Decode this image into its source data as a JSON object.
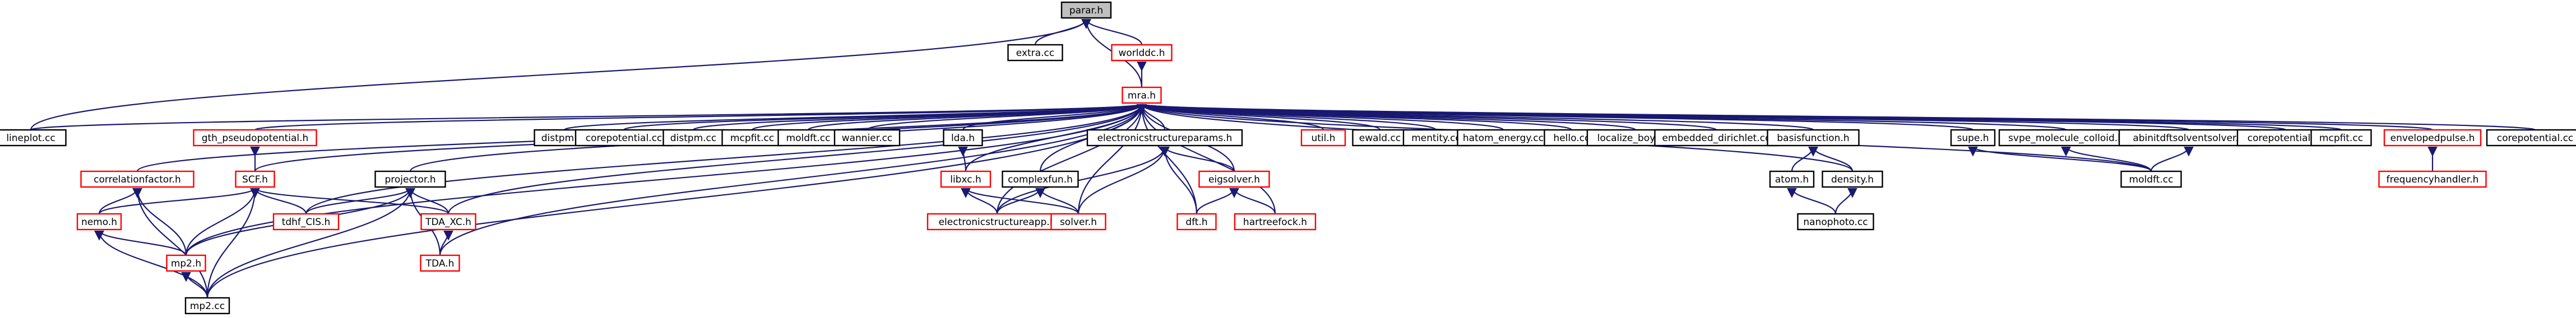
{
  "colors": {
    "edge": "#191970",
    "node_border": "#000000",
    "node_border_incomplete": "#ff0000",
    "focus_fill": "#bfbfbf",
    "node_fill": "#ffffff"
  },
  "nodes": [
    {
      "id": "parar_h",
      "label": "parar.h",
      "kind": "focus"
    },
    {
      "id": "extra_cc",
      "label": "extra.cc",
      "kind": "plain"
    },
    {
      "id": "worlddc_h",
      "label": "worlddc.h",
      "kind": "incomplete"
    },
    {
      "id": "mra_h",
      "label": "mra.h",
      "kind": "incomplete"
    },
    {
      "id": "lineplot_cc",
      "label": "lineplot.cc",
      "kind": "plain"
    },
    {
      "id": "gth_pseudopotential_h",
      "label": "gth_pseudopotential.h",
      "kind": "incomplete"
    },
    {
      "id": "correlationfactor_h",
      "label": "correlationfactor.h",
      "kind": "incomplete"
    },
    {
      "id": "scf_h",
      "label": "SCF.h",
      "kind": "incomplete"
    },
    {
      "id": "projector_h",
      "label": "projector.h",
      "kind": "plain"
    },
    {
      "id": "nemo_h",
      "label": "nemo.h",
      "kind": "incomplete"
    },
    {
      "id": "tdhf_cis_h",
      "label": "tdhf_CIS.h",
      "kind": "incomplete"
    },
    {
      "id": "tda_xc_h",
      "label": "TDA_XC.h",
      "kind": "incomplete"
    },
    {
      "id": "mp2_h",
      "label": "mp2.h",
      "kind": "incomplete"
    },
    {
      "id": "tda_h",
      "label": "TDA.h",
      "kind": "incomplete"
    },
    {
      "id": "mp2_cc",
      "label": "mp2.cc",
      "kind": "plain"
    },
    {
      "id": "distpm_cc_1",
      "label": "distpm.cc",
      "kind": "plain"
    },
    {
      "id": "corepotential_cc_1",
      "label": "corepotential.cc",
      "kind": "plain"
    },
    {
      "id": "distpm_cc_2",
      "label": "distpm.cc",
      "kind": "plain"
    },
    {
      "id": "mcpfit_cc_1",
      "label": "mcpfit.cc",
      "kind": "plain"
    },
    {
      "id": "moldft_cc_1",
      "label": "moldft.cc",
      "kind": "plain"
    },
    {
      "id": "wannier_cc",
      "label": "wannier.cc",
      "kind": "plain"
    },
    {
      "id": "lda_h",
      "label": "lda.h",
      "kind": "plain"
    },
    {
      "id": "libxc_h",
      "label": "libxc.h",
      "kind": "incomplete"
    },
    {
      "id": "complexfun_h",
      "label": "complexfun.h",
      "kind": "plain"
    },
    {
      "id": "ecp_h",
      "label": "electronicstructureparams.h",
      "kind": "plain"
    },
    {
      "id": "eigsolver_h",
      "label": "eigsolver.h",
      "kind": "incomplete"
    },
    {
      "id": "esapp_h",
      "label": "electronicstructureapp.h",
      "kind": "incomplete"
    },
    {
      "id": "solver_h",
      "label": "solver.h",
      "kind": "incomplete"
    },
    {
      "id": "dft_h",
      "label": "dft.h",
      "kind": "incomplete"
    },
    {
      "id": "hartreefock_h",
      "label": "hartreefock.h",
      "kind": "incomplete"
    },
    {
      "id": "util_h",
      "label": "util.h",
      "kind": "incomplete"
    },
    {
      "id": "ewald_cc",
      "label": "ewald.cc",
      "kind": "plain"
    },
    {
      "id": "mentity_cc",
      "label": "mentity.cc",
      "kind": "plain"
    },
    {
      "id": "hatom_energy_cc",
      "label": "hatom_energy.cc",
      "kind": "plain"
    },
    {
      "id": "hello_cc",
      "label": "hello.cc",
      "kind": "plain"
    },
    {
      "id": "localize_boys_cc",
      "label": "localize_boys.cc",
      "kind": "plain"
    },
    {
      "id": "embedded_dirichlet_cc",
      "label": "embedded_dirichlet.cc",
      "kind": "plain"
    },
    {
      "id": "basisfunction_h",
      "label": "basisfunction.h",
      "kind": "plain"
    },
    {
      "id": "atom_h",
      "label": "atom.h",
      "kind": "plain"
    },
    {
      "id": "density_h",
      "label": "density.h",
      "kind": "plain"
    },
    {
      "id": "nanophoto_cc",
      "label": "nanophoto.cc",
      "kind": "plain"
    },
    {
      "id": "supe_h",
      "label": "supe.h",
      "kind": "plain"
    },
    {
      "id": "svpe_h",
      "label": "svpe_molecule_colloid.h",
      "kind": "plain"
    },
    {
      "id": "abinitdft_h",
      "label": "abinitdftsolventsolver.h",
      "kind": "plain"
    },
    {
      "id": "moldft_cc_2",
      "label": "moldft.cc",
      "kind": "plain"
    },
    {
      "id": "corepotential_cc_2",
      "label": "corepotential.cc",
      "kind": "plain"
    },
    {
      "id": "mcpfit_cc_2",
      "label": "mcpfit.cc",
      "kind": "plain"
    },
    {
      "id": "envelopedpulse_h",
      "label": "envelopedpulse.h",
      "kind": "incomplete"
    },
    {
      "id": "frequencyhandler_h",
      "label": "frequencyhandler.h",
      "kind": "incomplete"
    },
    {
      "id": "corepotential_cc_3",
      "label": "corepotential.cc",
      "kind": "plain"
    }
  ],
  "edges": [
    [
      "parar_h",
      "extra_cc"
    ],
    [
      "parar_h",
      "worlddc_h"
    ],
    [
      "parar_h",
      "mra_h"
    ],
    [
      "parar_h",
      "lineplot_cc"
    ],
    [
      "worlddc_h",
      "mra_h"
    ],
    [
      "mra_h",
      "lineplot_cc"
    ],
    [
      "mra_h",
      "gth_pseudopotential_h"
    ],
    [
      "mra_h",
      "correlationfactor_h"
    ],
    [
      "mra_h",
      "scf_h"
    ],
    [
      "mra_h",
      "projector_h"
    ],
    [
      "mra_h",
      "tda_xc_h"
    ],
    [
      "mra_h",
      "tda_h"
    ],
    [
      "mra_h",
      "mp2_h"
    ],
    [
      "mra_h",
      "mp2_cc"
    ],
    [
      "mra_h",
      "tdhf_cis_h"
    ],
    [
      "mra_h",
      "distpm_cc_1"
    ],
    [
      "mra_h",
      "corepotential_cc_1"
    ],
    [
      "mra_h",
      "distpm_cc_2"
    ],
    [
      "mra_h",
      "mcpfit_cc_1"
    ],
    [
      "mra_h",
      "moldft_cc_1"
    ],
    [
      "mra_h",
      "wannier_cc"
    ],
    [
      "mra_h",
      "lda_h"
    ],
    [
      "mra_h",
      "libxc_h"
    ],
    [
      "mra_h",
      "complexfun_h"
    ],
    [
      "mra_h",
      "ecp_h"
    ],
    [
      "mra_h",
      "eigsolver_h"
    ],
    [
      "mra_h",
      "solver_h"
    ],
    [
      "mra_h",
      "dft_h"
    ],
    [
      "mra_h",
      "hartreefock_h"
    ],
    [
      "mra_h",
      "esapp_h"
    ],
    [
      "mra_h",
      "util_h"
    ],
    [
      "mra_h",
      "ewald_cc"
    ],
    [
      "mra_h",
      "mentity_cc"
    ],
    [
      "mra_h",
      "hatom_energy_cc"
    ],
    [
      "mra_h",
      "hello_cc"
    ],
    [
      "mra_h",
      "localize_boys_cc"
    ],
    [
      "mra_h",
      "embedded_dirichlet_cc"
    ],
    [
      "mra_h",
      "basisfunction_h"
    ],
    [
      "mra_h",
      "density_h"
    ],
    [
      "mra_h",
      "supe_h"
    ],
    [
      "mra_h",
      "svpe_h"
    ],
    [
      "mra_h",
      "moldft_cc_2"
    ],
    [
      "mra_h",
      "abinitdft_h"
    ],
    [
      "mra_h",
      "corepotential_cc_2"
    ],
    [
      "mra_h",
      "mcpfit_cc_2"
    ],
    [
      "mra_h",
      "envelopedpulse_h"
    ],
    [
      "mra_h",
      "corepotential_cc_3"
    ],
    [
      "gth_pseudopotential_h",
      "scf_h"
    ],
    [
      "correlationfactor_h",
      "nemo_h"
    ],
    [
      "correlationfactor_h",
      "mp2_h"
    ],
    [
      "correlationfactor_h",
      "mp2_cc"
    ],
    [
      "scf_h",
      "nemo_h"
    ],
    [
      "scf_h",
      "tdhf_cis_h"
    ],
    [
      "scf_h",
      "tda_xc_h"
    ],
    [
      "scf_h",
      "mp2_h"
    ],
    [
      "scf_h",
      "mp2_cc"
    ],
    [
      "projector_h",
      "tdhf_cis_h"
    ],
    [
      "projector_h",
      "tda_xc_h"
    ],
    [
      "projector_h",
      "mp2_h"
    ],
    [
      "projector_h",
      "tda_h"
    ],
    [
      "projector_h",
      "mp2_cc"
    ],
    [
      "nemo_h",
      "mp2_h"
    ],
    [
      "nemo_h",
      "mp2_cc"
    ],
    [
      "tda_xc_h",
      "tda_h"
    ],
    [
      "mp2_h",
      "mp2_cc"
    ],
    [
      "lda_h",
      "libxc_h"
    ],
    [
      "libxc_h",
      "esapp_h"
    ],
    [
      "libxc_h",
      "solver_h"
    ],
    [
      "complexfun_h",
      "esapp_h"
    ],
    [
      "complexfun_h",
      "solver_h"
    ],
    [
      "ecp_h",
      "esapp_h"
    ],
    [
      "ecp_h",
      "solver_h"
    ],
    [
      "ecp_h",
      "dft_h"
    ],
    [
      "ecp_h",
      "eigsolver_h"
    ],
    [
      "eigsolver_h",
      "dft_h"
    ],
    [
      "eigsolver_h",
      "hartreefock_h"
    ],
    [
      "basisfunction_h",
      "atom_h"
    ],
    [
      "basisfunction_h",
      "density_h"
    ],
    [
      "atom_h",
      "nanophoto_cc"
    ],
    [
      "density_h",
      "nanophoto_cc"
    ],
    [
      "supe_h",
      "moldft_cc_2"
    ],
    [
      "svpe_h",
      "moldft_cc_2"
    ],
    [
      "abinitdft_h",
      "moldft_cc_2"
    ],
    [
      "envelopedpulse_h",
      "frequencyhandler_h"
    ]
  ]
}
